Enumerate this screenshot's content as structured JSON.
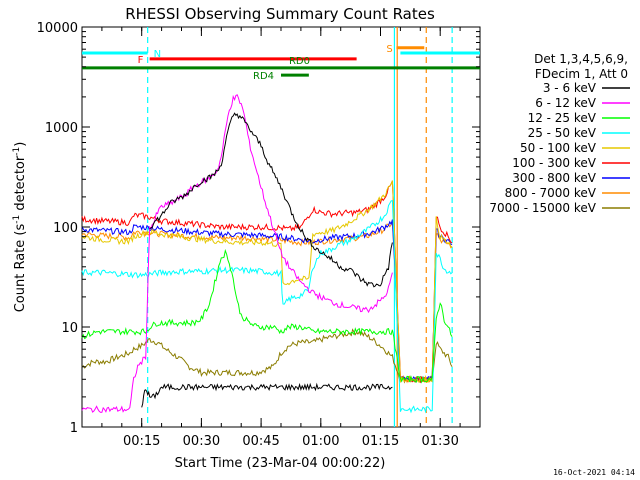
{
  "chart_data": {
    "type": "line",
    "title": "RHESSI Observing Summary Count Rates",
    "xlabel": "Start Time (23-Mar-04 00:00:22)",
    "ylabel": "Count Rate (s-1 detector-1)",
    "ylabel_parts": {
      "main": "Count Rate (s",
      "sup1": "-1",
      "mid": " detector",
      "sup2": "-1",
      "end": ")"
    },
    "yscale": "log",
    "xlim": [
      0,
      100
    ],
    "ylim": [
      1,
      10000
    ],
    "x_ticks": [
      15,
      30,
      45,
      60,
      75,
      90
    ],
    "x_tick_labels": [
      "00:15",
      "00:30",
      "00:45",
      "01:00",
      "01:15",
      "01:30"
    ],
    "y_ticks": [
      1,
      10,
      100,
      1000,
      10000
    ],
    "y_tick_labels": [
      "1",
      "10",
      "100",
      "1000",
      "10000"
    ],
    "legend": {
      "placement": "right",
      "header": [
        "Det 1,3,4,5,6,9,",
        "FDecim 1, Att 0"
      ],
      "entries": [
        {
          "label": "3 - 6 keV",
          "color": "#000000"
        },
        {
          "label": "6 - 12 keV",
          "color": "#ff00ff"
        },
        {
          "label": "12 - 25 keV",
          "color": "#00ff00"
        },
        {
          "label": "25 - 50 keV",
          "color": "#00ffff"
        },
        {
          "label": "50 - 100 keV",
          "color": "#e6c800"
        },
        {
          "label": "100 - 300 keV",
          "color": "#ff0000"
        },
        {
          "label": "300 - 800 keV",
          "color": "#0000ff"
        },
        {
          "label": "800 - 7000 keV",
          "color": "#ff8c00"
        },
        {
          "label": "7000 - 15000 keV",
          "color": "#8b7d00"
        }
      ]
    },
    "timestamp": "16-Oct-2021 04:14",
    "flags": [
      {
        "label": "N",
        "color": "#00ffff",
        "y": 5500,
        "segments": [
          [
            0,
            16.5
          ],
          [
            80,
            100
          ]
        ]
      },
      {
        "label": "F",
        "color": "#ff0000",
        "y": 4800,
        "segments": [
          [
            17,
            69
          ]
        ]
      },
      {
        "label": "RD0",
        "color": "#008000",
        "y": 3900,
        "segments": [
          [
            0,
            100
          ]
        ]
      },
      {
        "label": "RD4",
        "color": "#008000",
        "y": 3300,
        "segments": [
          [
            50,
            57
          ]
        ]
      },
      {
        "label": "S",
        "color": "#ff8c00",
        "y": 6200,
        "segments": [
          [
            79,
            86
          ]
        ]
      }
    ],
    "vlines": [
      {
        "x": 16.5,
        "color": "#00ffff",
        "dashed": true
      },
      {
        "x": 78.5,
        "color": "#00ffff",
        "dashed": false
      },
      {
        "x": 79.2,
        "color": "#ff8c00",
        "dashed": false
      },
      {
        "x": 86.5,
        "color": "#ff8c00",
        "dashed": true
      },
      {
        "x": 93,
        "color": "#00ffff",
        "dashed": true
      }
    ],
    "series": [
      {
        "name": "3 - 6 keV",
        "color": "#000000",
        "x": [
          15,
          15.5,
          16,
          16.5,
          17,
          17.5,
          18,
          19,
          20,
          21,
          22,
          23,
          25,
          27,
          29,
          31,
          33,
          35,
          37,
          38,
          39,
          40,
          42,
          44,
          46,
          48,
          50,
          52,
          55,
          58,
          61,
          64,
          67,
          70,
          72,
          74,
          76,
          77,
          78
        ],
        "y": [
          1.5,
          2,
          2.5,
          2.2,
          2,
          2,
          2,
          2.2,
          2.5,
          2.5,
          2.5,
          2.5,
          2.5,
          2.5,
          2.5,
          2.5,
          2.5,
          2.5,
          2.5,
          2.5,
          2.5,
          2.5,
          2.5,
          2.5,
          2.5,
          2.5,
          2.5,
          2.5,
          2.5,
          2.5,
          2.5,
          2.5,
          2.5,
          2.5,
          2.5,
          2.5,
          2.5,
          2.5,
          2.5
        ],
        "segments2": {
          "x": [
            17,
            20,
            22,
            24,
            26,
            28,
            30,
            32,
            34,
            35,
            36,
            37,
            38,
            39,
            40,
            41,
            43,
            45,
            47,
            50,
            53,
            56,
            59,
            62,
            65,
            68,
            70,
            72,
            74,
            75,
            76,
            77,
            78
          ],
          "y": [
            100,
            130,
            170,
            190,
            210,
            250,
            290,
            310,
            360,
            420,
            700,
            1000,
            1300,
            1350,
            1250,
            1100,
            850,
            650,
            420,
            250,
            130,
            80,
            60,
            50,
            40,
            36,
            30,
            27,
            26,
            27,
            33,
            40,
            70
          ]
        }
      },
      {
        "name": "6 - 12 keV",
        "color": "#ff00ff",
        "x": [
          0,
          5,
          10,
          12,
          13,
          14,
          15,
          16,
          17,
          18,
          19,
          20,
          22,
          24,
          26,
          28,
          30,
          32,
          34,
          35,
          36,
          37,
          38,
          39,
          40,
          41,
          42,
          44,
          46,
          48,
          50,
          52,
          55,
          58,
          61,
          64,
          67,
          70,
          72,
          74,
          76,
          77,
          78
        ],
        "y": [
          1.5,
          1.5,
          1.5,
          1.5,
          3,
          4,
          4.5,
          5,
          100,
          110,
          140,
          160,
          170,
          190,
          210,
          250,
          280,
          310,
          370,
          500,
          900,
          1500,
          1900,
          2000,
          1700,
          1200,
          700,
          350,
          180,
          100,
          55,
          40,
          28,
          22,
          19,
          17,
          16,
          15,
          15,
          17,
          20,
          24,
          35
        ]
      },
      {
        "name": "12 - 25 keV",
        "color": "#00ff00",
        "x": [
          0,
          4,
          8,
          12,
          14,
          16,
          17,
          19,
          22,
          25,
          28,
          30,
          32,
          34,
          35,
          36,
          37,
          38,
          39,
          40,
          42,
          44,
          46,
          48,
          50,
          52,
          55,
          58,
          61,
          64,
          67,
          70,
          74,
          78,
          80,
          85,
          88,
          89,
          90,
          91,
          93
        ],
        "y": [
          8,
          9,
          9,
          9,
          9,
          9,
          10,
          11,
          11,
          11,
          11,
          12,
          17,
          35,
          50,
          55,
          45,
          30,
          18,
          13,
          11,
          10,
          10,
          10,
          9,
          10,
          10,
          9,
          9,
          9,
          9,
          9,
          9,
          9,
          3,
          3,
          3,
          12,
          18,
          12,
          8
        ]
      },
      {
        "name": "25 - 50 keV",
        "color": "#00ffff",
        "x": [
          0,
          5,
          10,
          15,
          20,
          25,
          30,
          35,
          40,
          45,
          48,
          50,
          50.5,
          52,
          54,
          56,
          57,
          58,
          60,
          62,
          64,
          66,
          68,
          70,
          72,
          74,
          76,
          78,
          80,
          85,
          88,
          89,
          90,
          91,
          93
        ],
        "y": [
          35,
          35,
          34,
          33,
          35,
          36,
          36,
          37,
          37,
          36,
          35,
          34,
          16,
          19,
          20,
          22,
          24,
          40,
          55,
          58,
          65,
          70,
          75,
          85,
          95,
          110,
          130,
          190,
          1.5,
          1.5,
          1.5,
          55,
          48,
          38,
          35
        ]
      },
      {
        "name": "50 - 100 keV",
        "color": "#e6c800",
        "x": [
          0,
          5,
          10,
          12,
          13,
          15,
          17,
          20,
          25,
          30,
          35,
          40,
          45,
          48,
          50,
          50.5,
          52,
          54,
          56,
          57,
          58,
          60,
          63,
          66,
          69,
          72,
          74,
          76,
          78,
          80,
          88,
          89,
          90,
          92,
          93
        ],
        "y": [
          80,
          75,
          72,
          72,
          80,
          85,
          90,
          85,
          80,
          75,
          72,
          70,
          70,
          68,
          66,
          26,
          28,
          30,
          30,
          30,
          85,
          88,
          92,
          105,
          125,
          150,
          175,
          210,
          280,
          3,
          3,
          120,
          80,
          68,
          62
        ]
      },
      {
        "name": "100 - 300 keV",
        "color": "#ff0000",
        "x": [
          0,
          5,
          10,
          12,
          13,
          15,
          17,
          20,
          25,
          30,
          35,
          40,
          45,
          50,
          52,
          55,
          58,
          60,
          63,
          66,
          69,
          72,
          74,
          76,
          78,
          80,
          88,
          89,
          90,
          92,
          93
        ],
        "y": [
          120,
          115,
          112,
          110,
          130,
          130,
          125,
          115,
          110,
          105,
          100,
          100,
          100,
          98,
          95,
          100,
          150,
          140,
          135,
          138,
          140,
          150,
          170,
          200,
          280,
          3,
          3,
          130,
          100,
          80,
          70
        ]
      },
      {
        "name": "300 - 800 keV",
        "color": "#0000ff",
        "x": [
          0,
          5,
          10,
          12,
          13,
          15,
          17,
          20,
          25,
          30,
          35,
          40,
          45,
          50,
          52,
          55,
          58,
          60,
          63,
          66,
          69,
          72,
          74,
          76,
          78,
          80,
          88,
          89,
          90,
          92,
          93
        ],
        "y": [
          95,
          92,
          90,
          88,
          100,
          100,
          98,
          95,
          92,
          88,
          85,
          84,
          82,
          80,
          78,
          75,
          72,
          75,
          78,
          80,
          82,
          86,
          92,
          100,
          115,
          3,
          3,
          95,
          80,
          72,
          68
        ]
      },
      {
        "name": "800 - 7000 keV",
        "color": "#ff8c00",
        "x": [
          0,
          5,
          10,
          12,
          13,
          15,
          17,
          20,
          25,
          30,
          35,
          40,
          45,
          50,
          52,
          55,
          58,
          60,
          63,
          66,
          69,
          72,
          74,
          76,
          78,
          80,
          88,
          89,
          90,
          92,
          93
        ],
        "y": [
          85,
          82,
          80,
          78,
          88,
          90,
          88,
          85,
          82,
          80,
          78,
          78,
          76,
          74,
          72,
          70,
          70,
          72,
          74,
          76,
          78,
          82,
          88,
          95,
          110,
          3,
          3,
          90,
          75,
          68,
          64
        ]
      },
      {
        "name": "7000 - 15000 keV",
        "color": "#8b7d00",
        "x": [
          0,
          3,
          6,
          9,
          12,
          13,
          15,
          17,
          19,
          21,
          24,
          27,
          30,
          33,
          36,
          40,
          44,
          48,
          50,
          52,
          55,
          58,
          60,
          63,
          66,
          69,
          72,
          74,
          76,
          78,
          80,
          88,
          89,
          90,
          92,
          93
        ],
        "y": [
          4,
          4.5,
          4.5,
          5,
          5.5,
          6,
          6.5,
          7.5,
          7,
          6,
          5,
          4,
          3.5,
          3.5,
          3.5,
          3.5,
          3.5,
          4,
          5.5,
          6.5,
          7,
          7,
          7.5,
          8,
          8.5,
          9,
          8,
          7,
          6,
          5,
          3,
          3,
          7,
          6,
          5,
          4
        ]
      }
    ]
  }
}
